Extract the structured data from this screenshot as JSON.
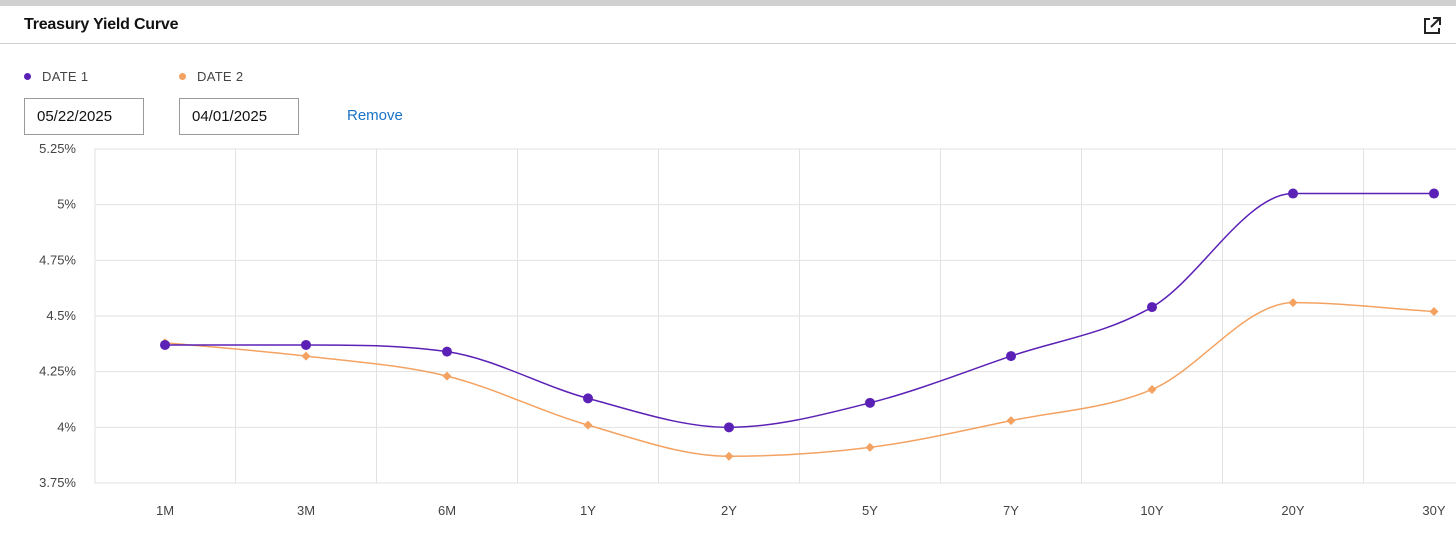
{
  "header": {
    "title": "Treasury Yield Curve"
  },
  "icons": {
    "expand": "external-link-icon"
  },
  "legend": [
    {
      "label": "DATE 1",
      "color": "#5b21b6"
    },
    {
      "label": "DATE 2",
      "color": "#f4a261"
    }
  ],
  "controls": {
    "date1_value": "05/22/2025",
    "date2_value": "04/01/2025",
    "remove_label": "Remove"
  },
  "chart_data": {
    "type": "line",
    "title": "",
    "xlabel": "",
    "ylabel": "",
    "categories": [
      "1M",
      "3M",
      "6M",
      "1Y",
      "2Y",
      "5Y",
      "7Y",
      "10Y",
      "20Y",
      "30Y"
    ],
    "ylim": [
      3.75,
      5.25
    ],
    "yticks": [
      3.75,
      4,
      4.25,
      4.5,
      4.75,
      5,
      5.25
    ],
    "ytick_labels": [
      "3.75%",
      "4%",
      "4.25%",
      "4.5%",
      "4.75%",
      "5%",
      "5.25%"
    ],
    "grid": true,
    "legend_position": "top-left",
    "series": [
      {
        "name": "DATE 1",
        "color": "#5b21b6",
        "marker": "circle",
        "values": [
          4.37,
          4.37,
          4.34,
          4.13,
          4.0,
          4.11,
          4.32,
          4.54,
          5.05,
          5.05
        ]
      },
      {
        "name": "DATE 2",
        "color": "#f4a261",
        "marker": "diamond",
        "values": [
          4.38,
          4.32,
          4.23,
          4.01,
          3.87,
          3.91,
          4.03,
          4.17,
          4.56,
          4.52
        ]
      }
    ]
  }
}
